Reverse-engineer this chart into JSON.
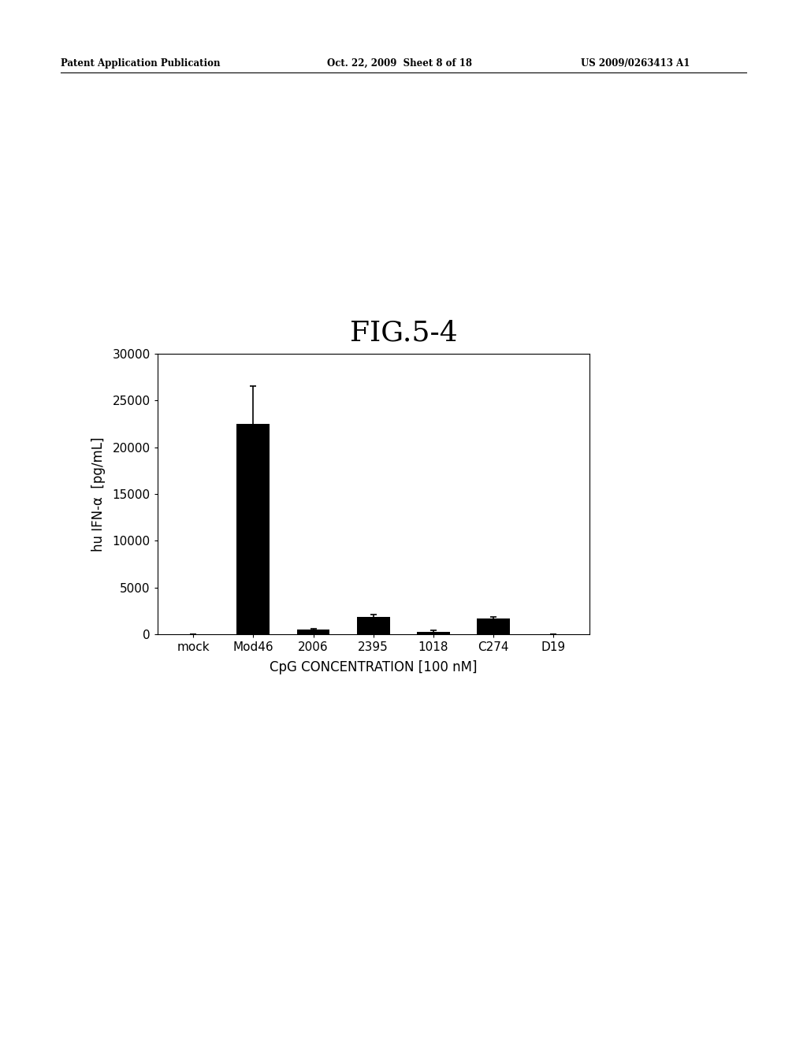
{
  "title": "FIG.5-4",
  "categories": [
    "mock",
    "Mod46",
    "2006",
    "2395",
    "1018",
    "C274",
    "D19"
  ],
  "values": [
    0,
    22500,
    500,
    1900,
    300,
    1700,
    0
  ],
  "errors": [
    0,
    4000,
    100,
    250,
    100,
    200,
    0
  ],
  "bar_color": "#000000",
  "ylabel": "hu IFN-α  [pg/mL]",
  "xlabel": "CpG CONCENTRATION [100 nM]",
  "ylim": [
    0,
    30000
  ],
  "yticks": [
    0,
    5000,
    10000,
    15000,
    20000,
    25000,
    30000
  ],
  "title_fontsize": 26,
  "axis_fontsize": 12,
  "tick_fontsize": 11,
  "header_left": "Patent Application Publication",
  "header_mid": "Oct. 22, 2009  Sheet 8 of 18",
  "header_right": "US 2009/0263413 A1",
  "header_fontsize": 8.5,
  "background_color": "#ffffff"
}
